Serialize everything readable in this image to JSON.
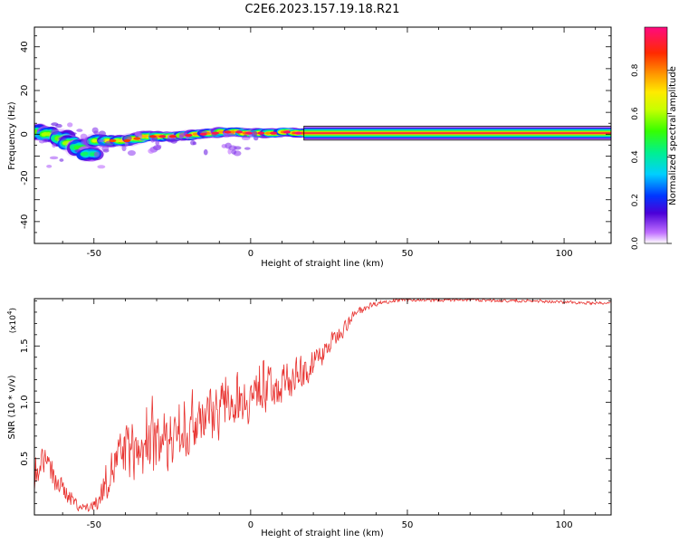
{
  "title": "C2E6.2023.157.19.18.R21",
  "chart_data": [
    {
      "type": "heatmap",
      "name": "spectrogram",
      "xlabel": "Height of straight line (km)",
      "ylabel": "Frequency (Hz)",
      "xlim": [
        -69,
        115
      ],
      "ylim": [
        -50,
        49
      ],
      "xticks": [
        -50,
        0,
        50,
        100
      ],
      "yticks": [
        -40,
        -20,
        0,
        20,
        40
      ],
      "ridge": [
        {
          "x": -68,
          "y": 1,
          "w": 3.5,
          "a": 0.55
        },
        {
          "x": -64,
          "y": 0,
          "w": 3.2,
          "a": 0.6
        },
        {
          "x": -60,
          "y": -2,
          "w": 3.6,
          "a": 0.55
        },
        {
          "x": -57,
          "y": -4,
          "w": 3.2,
          "a": 0.6
        },
        {
          "x": -54,
          "y": -6,
          "w": 3.8,
          "a": 0.5
        },
        {
          "x": -51,
          "y": -9,
          "w": 3.0,
          "a": 0.45
        },
        {
          "x": -48,
          "y": -3,
          "w": 2.6,
          "a": 0.65
        },
        {
          "x": -44,
          "y": -3,
          "w": 2.4,
          "a": 0.7
        },
        {
          "x": -40,
          "y": -3,
          "w": 2.2,
          "a": 0.72
        },
        {
          "x": -36,
          "y": -2,
          "w": 2.2,
          "a": 0.7
        },
        {
          "x": -32,
          "y": -1,
          "w": 2.0,
          "a": 0.75
        },
        {
          "x": -28,
          "y": -1,
          "w": 2.0,
          "a": 0.78
        },
        {
          "x": -24,
          "y": -1,
          "w": 1.9,
          "a": 0.75
        },
        {
          "x": -20,
          "y": -0.5,
          "w": 1.9,
          "a": 0.78
        },
        {
          "x": -16,
          "y": 0,
          "w": 1.8,
          "a": 0.8
        },
        {
          "x": -12,
          "y": 0.5,
          "w": 1.8,
          "a": 0.8
        },
        {
          "x": -8,
          "y": 1,
          "w": 1.8,
          "a": 0.78
        },
        {
          "x": -4,
          "y": 1,
          "w": 1.8,
          "a": 0.8
        },
        {
          "x": 0,
          "y": 0.5,
          "w": 1.8,
          "a": 0.82
        },
        {
          "x": 4,
          "y": 0.5,
          "w": 1.8,
          "a": 0.8
        },
        {
          "x": 8,
          "y": 0.5,
          "w": 1.8,
          "a": 0.8
        },
        {
          "x": 12,
          "y": 1,
          "w": 1.7,
          "a": 0.82
        },
        {
          "x": 16,
          "y": 0.5,
          "w": 1.7,
          "a": 0.85
        }
      ],
      "line": {
        "x_start": 17,
        "x_end": 115,
        "y": 0.5,
        "amplitude": 0.95
      },
      "colorbar": {
        "label": "Normalized spectral amplitude",
        "range": [
          0,
          1
        ],
        "ticks": [
          "0.0",
          "0.2",
          "0.4",
          "0.6",
          "0.8"
        ]
      }
    },
    {
      "type": "line",
      "name": "snr",
      "xlabel": "Height of straight line (km)",
      "ylabel": "SNR (10 * v/v)",
      "ylabel_exponent_base": "(x10",
      "ylabel_exponent_power": "4",
      "ylabel_exponent_close": ")",
      "xlim": [
        -69,
        115
      ],
      "ylim": [
        0,
        19200
      ],
      "xticks": [
        -50,
        0,
        50,
        100
      ],
      "yticks": [
        {
          "v": 5000,
          "label": "0.5"
        },
        {
          "v": 10000,
          "label": "1.0"
        },
        {
          "v": 15000,
          "label": "1.5"
        }
      ],
      "color": "#e8322f",
      "envelope_x": [
        -69,
        -66,
        -62,
        -58,
        -55,
        -52,
        -49,
        -46,
        -42,
        -38,
        -34,
        -30,
        -26,
        -22,
        -18,
        -14,
        -10,
        -6,
        -2,
        2,
        6,
        10,
        14,
        18,
        22,
        26,
        30,
        34,
        38,
        42,
        50,
        60,
        70,
        80,
        90,
        100,
        110,
        115
      ],
      "envelope_y": [
        3000,
        5200,
        2800,
        1800,
        800,
        600,
        900,
        3200,
        5000,
        5800,
        5500,
        6300,
        6500,
        7600,
        8400,
        9000,
        9400,
        10200,
        10300,
        10600,
        11200,
        11600,
        12200,
        12800,
        14000,
        15400,
        16700,
        18000,
        18600,
        18900,
        19100,
        19050,
        19100,
        19000,
        19000,
        18900,
        18800,
        18750
      ],
      "noise_amplitude": [
        1300,
        1600,
        1200,
        900,
        500,
        450,
        800,
        1900,
        2600,
        3000,
        3200,
        3400,
        3300,
        3200,
        3100,
        3000,
        2900,
        2700,
        2600,
        2500,
        2300,
        2100,
        1900,
        1600,
        1300,
        1000,
        700,
        450,
        300,
        200,
        160,
        150,
        150,
        150,
        150,
        150,
        150,
        150
      ]
    }
  ]
}
